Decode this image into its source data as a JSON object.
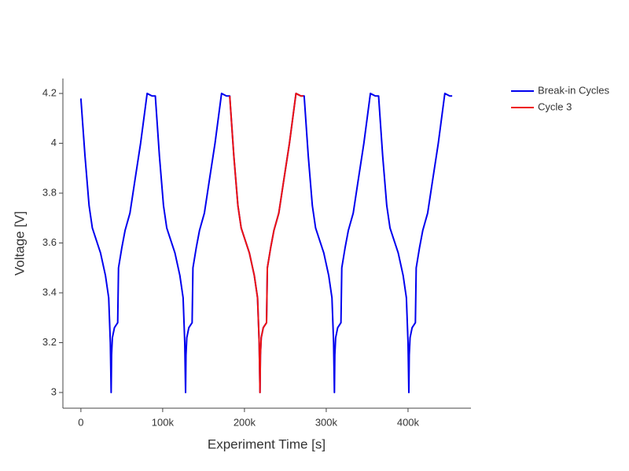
{
  "chart_data": {
    "type": "line",
    "xlabel": "Experiment Time [s]",
    "ylabel": "Voltage [V]",
    "xlim": [
      -22000,
      476000
    ],
    "ylim": [
      2.937,
      4.26
    ],
    "xticks": [
      0,
      {
        "value": 100000,
        "label": "100k"
      },
      {
        "value": 200000,
        "label": "200k"
      },
      {
        "value": 300000,
        "label": "300k"
      },
      {
        "value": 400000,
        "label": "400k"
      }
    ],
    "yticks": [
      3,
      3.2,
      3.4,
      3.6,
      3.8,
      4,
      4.2
    ],
    "legend": "top-right",
    "series": [
      {
        "name": "Break-in Cycles",
        "color": "#0000ee",
        "x": [
          0,
          5000,
          10000,
          14000,
          18000,
          24000,
          30000,
          34000,
          36000,
          37000,
          37500,
          38500,
          41000,
          45000,
          46000,
          50000,
          54000,
          60000,
          66000,
          73000,
          81000,
          87000,
          90000,
          91000,
          96000,
          101000,
          105000,
          109000,
          115000,
          121000,
          125000,
          127000,
          128000,
          128500,
          129500,
          132000,
          136000,
          137000,
          141000,
          145000,
          151000,
          157000,
          164000,
          172000,
          178000,
          181000,
          182000,
          187000,
          192000,
          196000,
          200000,
          206000,
          212000,
          216000,
          218000,
          219000,
          219500,
          220500,
          223000,
          227000,
          228000,
          232000,
          236000,
          242000,
          248000,
          255000,
          263000,
          269000,
          272000,
          273000,
          278000,
          283000,
          287000,
          291000,
          297000,
          303000,
          307000,
          309000,
          310000,
          310500,
          311500,
          314000,
          318000,
          319000,
          323000,
          327000,
          333000,
          339000,
          346000,
          354000,
          360000,
          363000,
          364000,
          369000,
          374000,
          378000,
          382000,
          388000,
          394000,
          398000,
          400000,
          401000,
          401500,
          402500,
          405000,
          409000,
          410000,
          414000,
          418000,
          424000,
          430000,
          437000,
          445000,
          451000,
          454000
        ],
        "values": [
          4.18,
          3.95,
          3.75,
          3.66,
          3.62,
          3.56,
          3.47,
          3.38,
          3.2,
          3.0,
          3.15,
          3.22,
          3.26,
          3.28,
          3.5,
          3.58,
          3.65,
          3.72,
          3.85,
          4.0,
          4.2,
          4.19,
          4.19,
          4.19,
          3.95,
          3.75,
          3.66,
          3.62,
          3.56,
          3.47,
          3.38,
          3.2,
          3.0,
          3.15,
          3.22,
          3.26,
          3.28,
          3.5,
          3.58,
          3.65,
          3.72,
          3.85,
          4.0,
          4.2,
          4.19,
          4.19,
          4.19,
          3.95,
          3.75,
          3.66,
          3.62,
          3.56,
          3.47,
          3.38,
          3.2,
          3.0,
          3.15,
          3.22,
          3.26,
          3.28,
          3.5,
          3.58,
          3.65,
          3.72,
          3.85,
          4.0,
          4.2,
          4.19,
          4.19,
          4.19,
          3.95,
          3.75,
          3.66,
          3.62,
          3.56,
          3.47,
          3.38,
          3.2,
          3.0,
          3.15,
          3.22,
          3.26,
          3.28,
          3.5,
          3.58,
          3.65,
          3.72,
          3.85,
          4.0,
          4.2,
          4.19,
          4.19,
          4.19,
          3.95,
          3.75,
          3.66,
          3.62,
          3.56,
          3.47,
          3.38,
          3.2,
          3.0,
          3.15,
          3.22,
          3.26,
          3.28,
          3.5,
          3.58,
          3.65,
          3.72,
          3.85,
          4.0,
          4.2,
          4.19,
          4.19
        ]
      },
      {
        "name": "Cycle 3",
        "color": "#ee1111",
        "x": [
          182000,
          187000,
          192000,
          196000,
          200000,
          206000,
          212000,
          216000,
          218000,
          219000,
          219500,
          220500,
          223000,
          227000,
          228000,
          232000,
          236000,
          242000,
          248000,
          255000,
          263000,
          269000,
          272000
        ],
        "values": [
          4.19,
          3.95,
          3.75,
          3.66,
          3.62,
          3.56,
          3.47,
          3.38,
          3.2,
          3.0,
          3.15,
          3.22,
          3.26,
          3.28,
          3.5,
          3.58,
          3.65,
          3.72,
          3.85,
          4.0,
          4.2,
          4.19,
          4.19
        ]
      }
    ]
  }
}
